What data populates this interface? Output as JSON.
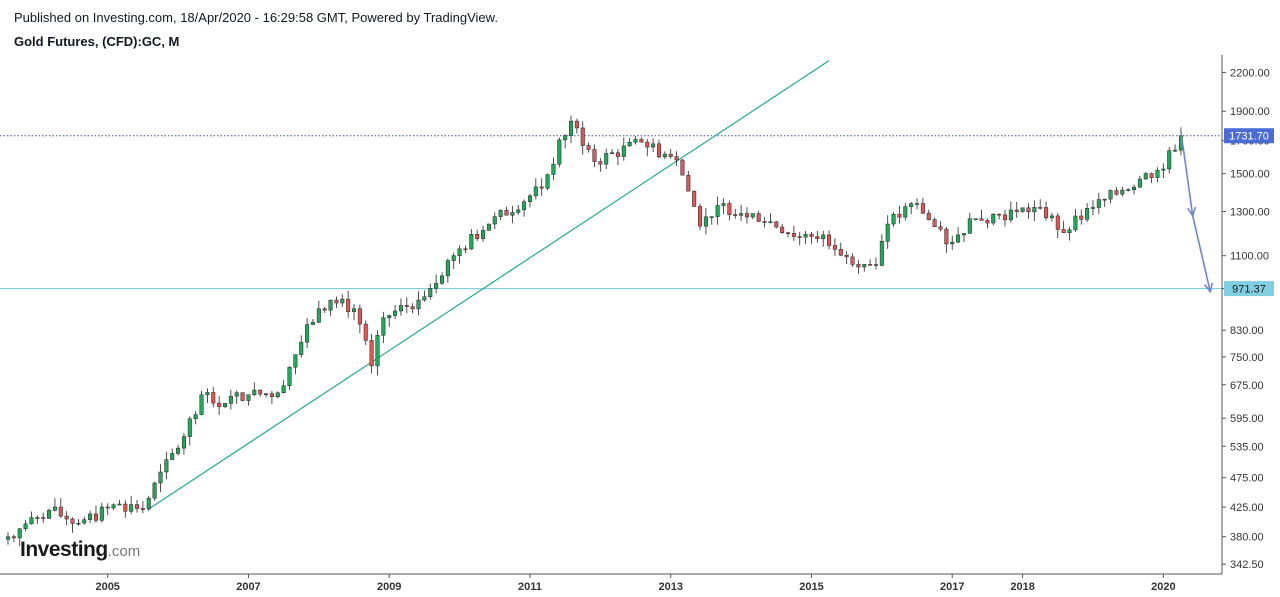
{
  "header": {
    "published": "Published on Investing.com, 18/Apr/2020 - 16:29:58 GMT, Powered by TradingView.",
    "title": "Gold Futures, (CFD):GC, M"
  },
  "logo": {
    "main": "Investing",
    "suffix": ".com"
  },
  "chart_data": {
    "type": "candlestick",
    "title": "Gold Futures, (CFD):GC, M",
    "scale": "log",
    "ylim": [
      330,
      2350
    ],
    "y_ticks": [
      "2200.00",
      "1900.00",
      "1700.00",
      "1500.00",
      "1300.00",
      "1100.00",
      "971.37",
      "830.00",
      "750.00",
      "675.00",
      "595.00",
      "535.00",
      "475.00",
      "425.00",
      "380.00",
      "342.50"
    ],
    "x_ticks": [
      {
        "label": "2005",
        "date": "2005-01"
      },
      {
        "label": "2007",
        "date": "2007-01"
      },
      {
        "label": "2009",
        "date": "2009-01"
      },
      {
        "label": "2011",
        "date": "2011-01"
      },
      {
        "label": "2013",
        "date": "2013-01"
      },
      {
        "label": "2015",
        "date": "2015-01"
      },
      {
        "label": "2017",
        "date": "2017-01"
      },
      {
        "label": "2018",
        "date": "2018-01"
      },
      {
        "label": "2020",
        "date": "2020-01"
      }
    ],
    "x_range": [
      "2003-08",
      "2020-11"
    ],
    "current_price": {
      "label": "1731.70",
      "value": 1731.7,
      "color": "#4a6cd4"
    },
    "support_level": {
      "label": "971.37",
      "value": 971.37,
      "color": "#7fcfe0"
    },
    "up_color": "#26a65b",
    "down_color": "#e05555",
    "trendline": {
      "color": "#26a88f",
      "points": [
        [
          "2005-08",
          422
        ],
        [
          "2015-04",
          2300
        ]
      ]
    },
    "projection_arrows": {
      "color": "#6f86c9",
      "points": [
        [
          "2020-04",
          1760
        ],
        [
          "2020-06",
          1280
        ],
        [
          "2020-09",
          960
        ]
      ]
    },
    "anchors": [
      [
        "2003-08",
        380
      ],
      [
        "2004-03",
        420
      ],
      [
        "2004-08",
        400
      ],
      [
        "2005-03",
        430
      ],
      [
        "2005-07",
        422
      ],
      [
        "2006-02",
        555
      ],
      [
        "2006-05",
        650
      ],
      [
        "2006-07",
        630
      ],
      [
        "2007-01",
        650
      ],
      [
        "2007-06",
        655
      ],
      [
        "2008-01",
        900
      ],
      [
        "2008-03",
        930
      ],
      [
        "2008-07",
        900
      ],
      [
        "2008-10",
        725
      ],
      [
        "2008-12",
        870
      ],
      [
        "2009-06",
        930
      ],
      [
        "2009-12",
        1100
      ],
      [
        "2010-06",
        1240
      ],
      [
        "2011-03",
        1420
      ],
      [
        "2011-08",
        1830
      ],
      [
        "2011-12",
        1570
      ],
      [
        "2012-08",
        1690
      ],
      [
        "2013-02",
        1580
      ],
      [
        "2013-06",
        1230
      ],
      [
        "2013-09",
        1330
      ],
      [
        "2014-03",
        1290
      ],
      [
        "2014-11",
        1180
      ],
      [
        "2015-03",
        1190
      ],
      [
        "2015-07",
        1095
      ],
      [
        "2015-12",
        1060
      ],
      [
        "2016-02",
        1240
      ],
      [
        "2016-07",
        1340
      ],
      [
        "2016-12",
        1150
      ],
      [
        "2017-05",
        1265
      ],
      [
        "2017-12",
        1300
      ],
      [
        "2018-04",
        1320
      ],
      [
        "2018-08",
        1200
      ],
      [
        "2019-01",
        1320
      ],
      [
        "2019-06",
        1410
      ],
      [
        "2019-09",
        1470
      ],
      [
        "2019-12",
        1520
      ],
      [
        "2020-03",
        1640
      ],
      [
        "2020-04",
        1731.7
      ]
    ]
  }
}
